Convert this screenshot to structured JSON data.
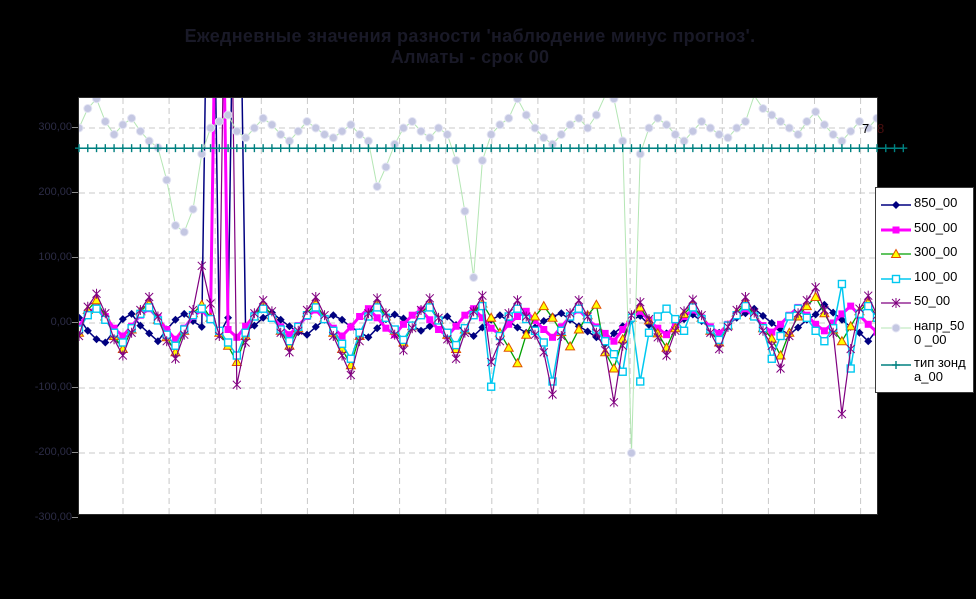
{
  "title": {
    "line1": "Ежедневные значения разности 'наблюдение минус прогноз'.",
    "line2": "Алматы - срок 00"
  },
  "annotations": {
    "top_right_label": "7",
    "outside_right_label": "8"
  },
  "colors": {
    "background": "#000000",
    "plot_background": "#ffffff",
    "gridline": "#c8c8c8",
    "title_text": "#191927",
    "axis_label_text": "#2c2c46",
    "legend_background": "#ffffff",
    "legend_text": "#000000"
  },
  "chart_data": {
    "type": "line",
    "title": "Ежедневные значения разности 'наблюдение минус прогноз'. Алматы - срок 00",
    "xlabel": "",
    "ylabel": "",
    "x_labels_visible": false,
    "n_points": 92,
    "ylim": [
      -294,
      346
    ],
    "grid": true,
    "legend_position": "right",
    "yticks": [
      {
        "v": 300,
        "label": "300,00"
      },
      {
        "v": 200,
        "label": "200,00"
      },
      {
        "v": 100,
        "label": "100,00"
      },
      {
        "v": 0,
        "label": "0,00"
      },
      {
        "v": -100,
        "label": "-100,00"
      },
      {
        "v": -200,
        "label": "-200,00"
      },
      {
        "v": -300,
        "label": "-300,00"
      }
    ],
    "series": [
      {
        "name": "850_00",
        "color": "#000080",
        "width": 1.5,
        "marker": "diamond",
        "marker_fill": "#000080",
        "marker_edge": "#000080",
        "values": [
          8,
          -12,
          -25,
          -30,
          -12,
          6,
          14,
          -4,
          -16,
          -28,
          -10,
          5,
          14,
          3,
          -6,
          900,
          -18,
          8,
          900,
          -12,
          -4,
          8,
          16,
          5,
          -5,
          -14,
          -18,
          -6,
          5,
          12,
          5,
          -6,
          -14,
          -22,
          -8,
          6,
          13,
          7,
          -4,
          -12,
          -5,
          5,
          10,
          -3,
          -13,
          -20,
          -7,
          5,
          12,
          3,
          -7,
          -15,
          -7,
          3,
          10,
          15,
          5,
          -5,
          -13,
          -22,
          -32,
          -16,
          -5,
          4,
          11,
          -3,
          -10,
          -16,
          -5,
          6,
          13,
          3,
          -8,
          -15,
          -3,
          8,
          15,
          22,
          11,
          0,
          -10,
          -18,
          -7,
          5,
          13,
          28,
          16,
          5,
          -6,
          -15,
          -28,
          -10
        ]
      },
      {
        "name": "500_00",
        "color": "#ff00ff",
        "width": 3,
        "marker": "square",
        "marker_fill": "#ff00ff",
        "marker_edge": "#ff00ff",
        "values": [
          -5,
          15,
          25,
          10,
          -8,
          -20,
          -5,
          12,
          22,
          8,
          -10,
          -25,
          -8,
          10,
          20,
          5,
          900,
          -10,
          -22,
          -5,
          12,
          24,
          10,
          -6,
          -18,
          -4,
          10,
          20,
          6,
          -8,
          -20,
          -6,
          10,
          22,
          8,
          -8,
          -18,
          -2,
          12,
          20,
          5,
          -10,
          -20,
          -5,
          12,
          22,
          8,
          -8,
          -18,
          -2,
          10,
          18,
          4,
          -10,
          -22,
          -6,
          10,
          20,
          6,
          -6,
          -16,
          -28,
          -10,
          8,
          18,
          4,
          -8,
          -18,
          -4,
          10,
          20,
          8,
          -6,
          -16,
          -2,
          12,
          22,
          10,
          -4,
          -14,
          -2,
          12,
          24,
          12,
          -2,
          -12,
          0,
          14,
          26,
          12,
          -2,
          -14
        ]
      },
      {
        "name": "300_00",
        "color": "#00a000",
        "width": 1.3,
        "marker": "triangle",
        "marker_fill": "#ffff00",
        "marker_edge": "#e05000",
        "values": [
          -15,
          20,
          35,
          10,
          -20,
          -40,
          -10,
          18,
          30,
          5,
          -22,
          -45,
          -12,
          15,
          28,
          8,
          -15,
          -35,
          -60,
          -20,
          10,
          28,
          12,
          -12,
          -35,
          -8,
          15,
          30,
          8,
          -15,
          -40,
          -65,
          -20,
          12,
          30,
          10,
          -12,
          -30,
          -5,
          15,
          28,
          5,
          -18,
          -40,
          -10,
          15,
          30,
          8,
          -15,
          -38,
          -62,
          -18,
          10,
          26,
          8,
          -14,
          -36,
          -10,
          12,
          28,
          -45,
          -70,
          -25,
          8,
          24,
          4,
          -16,
          -38,
          -8,
          14,
          28,
          8,
          -12,
          -30,
          -4,
          16,
          30,
          12,
          -8,
          -24,
          -50,
          -15,
          10,
          26,
          40,
          15,
          -10,
          -28,
          -5,
          18,
          32,
          8
        ]
      },
      {
        "name": "100_00",
        "color": "#00c8f0",
        "width": 1.5,
        "marker": "open-square",
        "marker_fill": "#ffffff",
        "marker_edge": "#00c8f0",
        "values": [
          -10,
          12,
          22,
          5,
          -15,
          -30,
          -8,
          14,
          24,
          4,
          -18,
          -35,
          -10,
          12,
          22,
          6,
          -12,
          -30,
          -50,
          -15,
          10,
          22,
          8,
          -10,
          -28,
          -6,
          12,
          24,
          6,
          -12,
          -32,
          -55,
          -15,
          10,
          24,
          8,
          -10,
          -26,
          -4,
          12,
          24,
          4,
          -15,
          -34,
          -8,
          12,
          26,
          -98,
          -20,
          10,
          22,
          6,
          -12,
          -30,
          -90,
          -12,
          10,
          22,
          6,
          -10,
          -28,
          -48,
          -75,
          8,
          -90,
          -15,
          10,
          22,
          6,
          -12,
          24,
          6,
          -10,
          -26,
          -4,
          12,
          26,
          10,
          -8,
          -55,
          -20,
          10,
          22,
          8,
          -12,
          -28,
          -8,
          60,
          -70,
          14,
          26,
          8
        ]
      },
      {
        "name": "50_00",
        "color": "#800080",
        "width": 1.2,
        "marker": "star",
        "marker_fill": "#800080",
        "marker_edge": "#800080",
        "values": [
          -20,
          25,
          45,
          15,
          -25,
          -50,
          -15,
          20,
          40,
          10,
          -28,
          -55,
          -18,
          20,
          88,
          30,
          -20,
          900,
          -95,
          -30,
          15,
          35,
          18,
          -15,
          -45,
          -12,
          20,
          40,
          12,
          -20,
          -50,
          -80,
          -28,
          15,
          38,
          15,
          -18,
          -42,
          -8,
          20,
          38,
          8,
          -25,
          -55,
          -15,
          18,
          42,
          -60,
          -28,
          15,
          35,
          10,
          -18,
          -45,
          -110,
          -20,
          15,
          35,
          10,
          -15,
          -42,
          -122,
          -35,
          12,
          32,
          6,
          -22,
          -50,
          -12,
          18,
          36,
          12,
          -15,
          -40,
          -6,
          20,
          40,
          16,
          -12,
          -35,
          -70,
          -20,
          15,
          35,
          55,
          20,
          -15,
          -140,
          -40,
          22,
          42,
          12
        ]
      },
      {
        "name": "напр_500_00",
        "color": "#b4e6b4",
        "width": 1,
        "marker": "circle",
        "marker_fill": "#c4c7e2",
        "marker_edge": "#e3e4f3",
        "values": [
          300,
          330,
          345,
          310,
          290,
          305,
          315,
          295,
          280,
          270,
          220,
          150,
          140,
          175,
          260,
          300,
          310,
          320,
          295,
          285,
          300,
          315,
          305,
          290,
          280,
          295,
          310,
          300,
          290,
          285,
          295,
          305,
          290,
          280,
          210,
          240,
          275,
          300,
          310,
          295,
          285,
          300,
          290,
          250,
          172,
          70,
          250,
          290,
          305,
          315,
          345,
          320,
          300,
          285,
          275,
          290,
          305,
          315,
          300,
          320,
          350,
          345,
          280,
          -200,
          260,
          300,
          315,
          305,
          290,
          280,
          295,
          310,
          300,
          290,
          285,
          300,
          310,
          350,
          330,
          320,
          310,
          300,
          290,
          310,
          325,
          305,
          290,
          280,
          295,
          310,
          300,
          315
        ]
      },
      {
        "name": "тип зонда_00",
        "color": "#008080",
        "width": 1.5,
        "marker": "plus",
        "marker_fill": "#008080",
        "marker_edge": "#008080",
        "constant": 269,
        "extends_past_plot": true
      }
    ]
  }
}
